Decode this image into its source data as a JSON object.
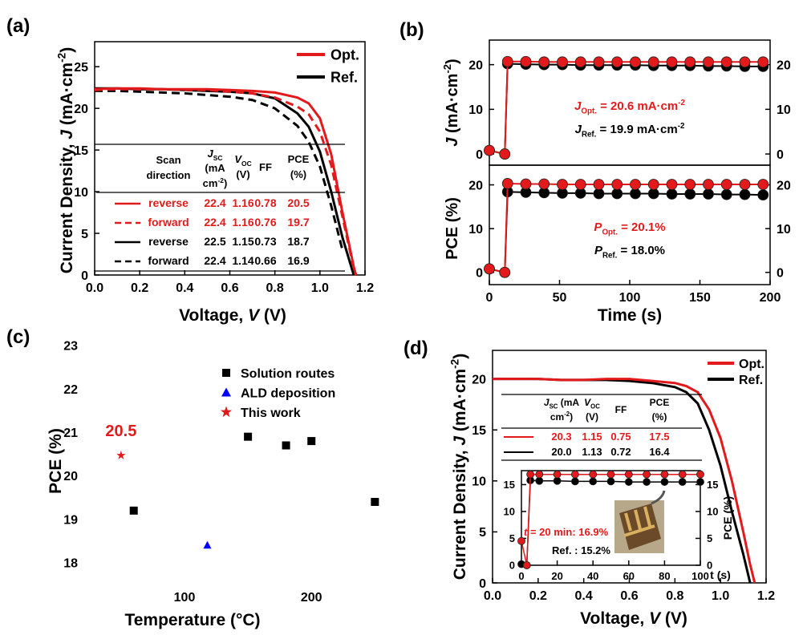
{
  "chart_data": [
    {
      "label": "(a)",
      "type": "line",
      "xlabel": [
        "Voltage, ",
        "V",
        " (V)"
      ],
      "ylabel": [
        "Current Density, ",
        "J",
        " (mA·cm",
        "-2",
        ")"
      ],
      "x": [
        0,
        0.1,
        0.2,
        0.3,
        0.4,
        0.5,
        0.6,
        0.7,
        0.8,
        0.9,
        0.95,
        1.0,
        1.05,
        1.1,
        1.15,
        1.16
      ],
      "series": [
        {
          "name": "Opt.",
          "color": "#e31a1c",
          "values": [
            22.3,
            22.4,
            22.4,
            22.3,
            22.3,
            22.3,
            22.2,
            22.1,
            21.9,
            21.3,
            20.6,
            18.8,
            14.5,
            7.5,
            1.0,
            0
          ]
        },
        {
          "color": "#e31a1c",
          "dash": true,
          "values": [
            22.2,
            22.3,
            22.3,
            22.3,
            22.2,
            22.2,
            22.0,
            21.8,
            21.3,
            20.2,
            19.3,
            17.2,
            13.2,
            7.0,
            0.8,
            0
          ]
        },
        {
          "name": "Ref.",
          "color": "#000000",
          "values": [
            22.4,
            22.4,
            22.3,
            22.3,
            22.2,
            22.1,
            22.0,
            21.8,
            21.2,
            19.4,
            17.8,
            14.8,
            10.0,
            4.5,
            0,
            null
          ]
        },
        {
          "color": "#000000",
          "dash": true,
          "values": [
            22.1,
            22.1,
            22.0,
            21.9,
            21.8,
            21.6,
            21.4,
            21.0,
            20.0,
            17.9,
            16.0,
            13.0,
            8.3,
            3.0,
            null,
            null
          ]
        }
      ],
      "xlim": [
        0,
        1.2
      ],
      "xticks": [
        {
          "value": 0,
          "label": "0.0"
        },
        0.2,
        0.4,
        0.6,
        0.8,
        {
          "value": 1,
          "label": "1.0"
        },
        1.2
      ],
      "ylim": [
        0,
        28
      ],
      "yticks": [
        0,
        5,
        10,
        15,
        20,
        25
      ],
      "table": {
        "header": [
          [
            "Scan",
            "direction"
          ],
          [
            "J",
            "SC",
            "(mA",
            "cm",
            "-2",
            ")"
          ],
          [
            "V",
            "OC",
            "(V)"
          ],
          [
            "FF"
          ],
          [
            "PCE",
            "(%)"
          ]
        ],
        "rows": [
          [
            "reverse",
            "22.4",
            "1.16",
            "0.78",
            "20.5"
          ],
          [
            "forward",
            "22.4",
            "1.16",
            "0.76",
            "19.7"
          ],
          [
            "reverse",
            "22.5",
            "1.15",
            "0.73",
            "18.7"
          ],
          [
            "forward",
            "22.4",
            "1.14",
            "0.66",
            "16.9"
          ]
        ]
      }
    },
    {
      "label": "(b)",
      "type": "line",
      "ylabel": [
        "J",
        " (mA·cm",
        "-2",
        ")"
      ],
      "x": [
        0,
        11,
        13,
        26,
        39,
        52,
        65,
        78,
        91,
        104,
        117,
        130,
        143,
        156,
        169,
        182,
        195
      ],
      "series": [
        {
          "color": "#e31a1c",
          "marker": "circle",
          "values": [
            0.8,
            0,
            20.7,
            20.7,
            20.6,
            20.6,
            20.6,
            20.6,
            20.6,
            20.6,
            20.6,
            20.6,
            20.6,
            20.6,
            20.6,
            20.6,
            20.6
          ]
        },
        {
          "color": "#000000",
          "marker": "circle",
          "values": [
            0.8,
            0,
            20.2,
            20.1,
            20.0,
            20.0,
            19.9,
            19.9,
            19.9,
            19.9,
            19.8,
            19.8,
            19.8,
            19.7,
            19.7,
            19.6,
            19.6
          ]
        }
      ],
      "xlim": [
        0,
        200
      ],
      "ylim": [
        -2.5,
        25.5
      ],
      "yticks": [
        0,
        10,
        20
      ],
      "annotations": [
        [
          "J",
          "Opt.",
          " = 20.6 mA·cm",
          "-2"
        ],
        [
          "J",
          "Ref.",
          " = 19.9 mA·cm",
          "-2"
        ]
      ]
    },
    {
      "type": "line",
      "xlabel": "Time (s)",
      "ylabel": "PCE (%)",
      "x": [
        0,
        11,
        13,
        26,
        39,
        52,
        65,
        78,
        91,
        104,
        117,
        130,
        143,
        156,
        169,
        182,
        195
      ],
      "series": [
        {
          "color": "#e31a1c",
          "marker": "circle",
          "values": [
            0.8,
            0,
            20.3,
            20.2,
            20.2,
            20.1,
            20.1,
            20.1,
            20.1,
            20.1,
            20.1,
            20.1,
            20.1,
            20.1,
            20.1,
            20.1,
            20.1
          ]
        },
        {
          "color": "#000000",
          "marker": "circle",
          "values": [
            0.8,
            0,
            18.4,
            18.3,
            18.2,
            18.1,
            18.1,
            18.0,
            18.0,
            18.0,
            18.0,
            17.9,
            17.9,
            17.9,
            17.8,
            17.8,
            17.7
          ]
        }
      ],
      "xlim": [
        0,
        200
      ],
      "xticks": [
        0,
        50,
        100,
        150,
        200
      ],
      "ylim": [
        -2.8,
        24.5
      ],
      "yticks": [
        0,
        10,
        20
      ],
      "annotations": [
        [
          "P",
          "Opt.",
          " = 20.1%"
        ],
        [
          "P",
          "Ref.",
          " = 18.0%"
        ]
      ]
    },
    {
      "label": "(c)",
      "type": "scatter",
      "xlabel": "Temperature (°C)",
      "ylabel": "PCE (%)",
      "series": [
        {
          "name": "Solution routes",
          "color": "#000000",
          "marker": "square",
          "x": [
            60,
            150,
            180,
            200,
            250
          ],
          "values": [
            19.2,
            20.9,
            20.7,
            20.8,
            19.4
          ]
        },
        {
          "name": "ALD deposition",
          "color": "#0000ff",
          "marker": "triangle",
          "x": [
            118
          ],
          "values": [
            18.4
          ]
        },
        {
          "name": "This work",
          "color": "#e31a1c",
          "marker": "star",
          "x": [
            50
          ],
          "values": [
            20.47
          ],
          "value_labels": [
            "20.5"
          ]
        }
      ],
      "xlim": [
        21,
        258
      ],
      "xticks": [
        100,
        200
      ],
      "ylim": [
        17.5,
        23.2
      ],
      "yticks": [
        18,
        19,
        20,
        21,
        22,
        23
      ],
      "legend": "upper right"
    },
    {
      "label": "(d)",
      "type": "line",
      "xlabel": [
        "Voltage, ",
        "V",
        " (V)"
      ],
      "ylabel": [
        "Current Density, ",
        "J",
        " (mA·cm",
        "-2",
        ")"
      ],
      "x": [
        0,
        0.1,
        0.2,
        0.3,
        0.4,
        0.5,
        0.6,
        0.7,
        0.8,
        0.85,
        0.9,
        0.95,
        1.0,
        1.05,
        1.1,
        1.13,
        1.15
      ],
      "series": [
        {
          "name": "Opt.",
          "color": "#e31a1c",
          "values": [
            20.0,
            20.0,
            20.0,
            19.9,
            19.9,
            20.0,
            20.0,
            19.8,
            19.6,
            19.3,
            18.7,
            17.0,
            14.2,
            10.0,
            5.0,
            1.8,
            0
          ]
        },
        {
          "name": "Ref.",
          "color": "#000000",
          "values": [
            20.0,
            20.0,
            20.0,
            19.9,
            19.9,
            19.9,
            19.8,
            19.6,
            19.2,
            18.7,
            17.6,
            15.0,
            11.5,
            7.0,
            2.8,
            0,
            null
          ]
        }
      ],
      "xlim": [
        0,
        1.2
      ],
      "xticks": [
        {
          "value": 0,
          "label": "0.0"
        },
        0.2,
        0.4,
        0.6,
        0.8,
        {
          "value": 1,
          "label": "1.0"
        },
        1.2
      ],
      "ylim": [
        0,
        22.8
      ],
      "yticks": [
        0,
        5,
        10,
        15,
        20
      ],
      "table": {
        "header": [
          [
            "J",
            "SC",
            " (mA",
            "cm",
            "-2",
            ")"
          ],
          [
            "V",
            "OC",
            "(V)"
          ],
          [
            "FF"
          ],
          [
            "PCE",
            "(%)"
          ]
        ],
        "rows": [
          [
            "20.3",
            "1.15",
            "0.75",
            "17.5"
          ],
          [
            "20.0",
            "1.13",
            "0.72",
            "16.4"
          ]
        ]
      }
    },
    {
      "type": "line",
      "xlabel": "t (s)",
      "ylabel": "PCE (%)",
      "x": [
        0,
        3,
        5,
        10,
        20,
        30,
        40,
        50,
        60,
        70,
        80,
        90,
        100
      ],
      "series": [
        {
          "color": "#e31a1c",
          "marker": "circle",
          "values": [
            4.5,
            0,
            16.9,
            16.9,
            16.9,
            16.9,
            16.9,
            16.9,
            16.9,
            16.9,
            16.9,
            16.9,
            16.9
          ]
        },
        {
          "color": "#000000",
          "marker": "circle",
          "values": [
            0.2,
            0,
            15.8,
            15.7,
            15.7,
            15.6,
            15.6,
            15.6,
            15.5,
            15.5,
            15.5,
            15.5,
            15.5
          ]
        }
      ],
      "xlim": [
        0,
        100
      ],
      "xticks": [
        0,
        20,
        40,
        60,
        80,
        100
      ],
      "ylim": [
        0,
        17.6
      ],
      "yticks": [
        0,
        5,
        10,
        15
      ],
      "annotations": [
        [
          "t",
          " = 20 min: 16.9%"
        ],
        [
          "Ref. : 15.2%"
        ]
      ]
    }
  ]
}
